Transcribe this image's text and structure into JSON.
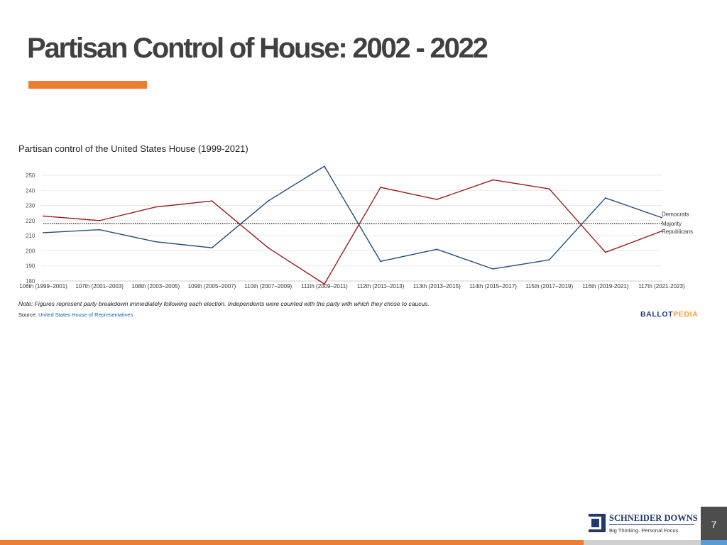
{
  "slide": {
    "title": "Partisan Control of House: 2002 - 2022",
    "accent_color": "#ed7d31",
    "page_number": "7"
  },
  "chart_data": {
    "type": "line",
    "title": "Partisan control of the United States House (1999-2021)",
    "categories": [
      "106th (1999–2001)",
      "107th (2001–2003)",
      "108th (2003–2005)",
      "109th (2005–2007)",
      "110th (2007–2009)",
      "111th (2009–2011)",
      "112th (2011–2013)",
      "113th (2013–2015)",
      "114th (2015–2017)",
      "115th (2017–2019)",
      "116th (2019-2021)",
      "117th (2021-2023)"
    ],
    "ylim": [
      180,
      258
    ],
    "yticks": [
      180,
      190,
      200,
      210,
      220,
      230,
      240,
      250
    ],
    "grid": true,
    "legend_position": "right",
    "series": [
      {
        "name": "Democrats",
        "color": "#1f4e79",
        "values": [
          212,
          214,
          206,
          202,
          233,
          256,
          193,
          201,
          188,
          194,
          235,
          222
        ]
      },
      {
        "name": "Republicans",
        "color": "#9b1c1c",
        "values": [
          223,
          220,
          229,
          233,
          202,
          178,
          242,
          234,
          247,
          241,
          199,
          213
        ]
      }
    ],
    "reference_line": {
      "name": "Majority",
      "value": 218,
      "style": "dotted",
      "color": "#111111"
    },
    "note": "Note: Figures represent party breakdown immediately following each election. Independents were counted with the party with which they chose to caucus.",
    "source_label": "Source: ",
    "source_link": "United States House of Representatives",
    "brand": {
      "part1": "BALLOT",
      "part2": "PEDIA",
      "color1": "#1f3a6b",
      "color2": "#f0a030"
    }
  },
  "company": {
    "name": "SCHNEIDER DOWNS",
    "tagline": "Big Thinking. Personal Focus.",
    "color": "#1f3a6b"
  },
  "footer": {
    "colors": [
      "#ed7d31",
      "#d0d0d0",
      "#5b9bd5"
    ]
  }
}
